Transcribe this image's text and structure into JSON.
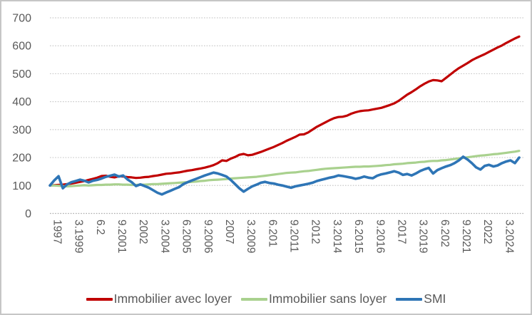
{
  "figure": {
    "background": "#ffffff",
    "border_color": "#c6c6c6"
  },
  "axis_style": {
    "label_color": "#595959",
    "grid_color": "#c9c9c9",
    "zero_line_color": "#ababab"
  },
  "chart_data": {
    "type": "line",
    "title": "",
    "xlabel": "",
    "ylabel": "",
    "ylim": [
      0,
      700
    ],
    "y_tick_labels": [
      "0",
      "100",
      "200",
      "300",
      "400",
      "500",
      "600",
      "700"
    ],
    "grid": "horizontal-dotted",
    "legend_position": "bottom",
    "x_tick_labels": [
      "1997",
      "3.1999",
      "6.2",
      "9.2001",
      "2002",
      "3.2004",
      "6.2005",
      "9.2006",
      "2007",
      "3.2009",
      "6.201",
      "9.2011",
      "2012",
      "3.2014",
      "6.2015",
      "9.2016",
      "2017",
      "3.2019",
      "6.202",
      "9.2021",
      "2022",
      "3.2024"
    ],
    "x_tick_every_n_points": 5,
    "x_unit": "quarters, 12.1997 - 3.2025",
    "series": [
      {
        "name": "Immobilier avec loyer",
        "color": "#c00000",
        "width": 3.2,
        "values": [
          100,
          101,
          102,
          103,
          105,
          107,
          110,
          113,
          116,
          120,
          124,
          128,
          134,
          135,
          131,
          129,
          133,
          132,
          130,
          129,
          127,
          128,
          130,
          131,
          134,
          136,
          139,
          142,
          143,
          145,
          147,
          150,
          153,
          155,
          158,
          161,
          164,
          168,
          173,
          180,
          190,
          188,
          196,
          202,
          210,
          213,
          208,
          210,
          215,
          220,
          226,
          232,
          238,
          245,
          252,
          260,
          267,
          274,
          282,
          283,
          290,
          300,
          310,
          318,
          326,
          334,
          341,
          345,
          346,
          350,
          357,
          362,
          366,
          368,
          369,
          372,
          375,
          378,
          383,
          388,
          394,
          403,
          414,
          425,
          434,
          444,
          455,
          464,
          472,
          477,
          476,
          473,
          485,
          497,
          509,
          520,
          529,
          538,
          548,
          556,
          563,
          570,
          578,
          586,
          594,
          601,
          610,
          618,
          626,
          633
        ]
      },
      {
        "name": "Immobilier sans loyer",
        "color": "#a9d18e",
        "width": 3.2,
        "values": [
          100,
          100,
          99,
          98,
          97,
          98,
          99,
          100,
          101,
          100,
          101,
          102,
          102,
          103,
          103,
          104,
          104,
          103,
          103,
          102,
          102,
          103,
          103,
          104,
          105,
          105,
          106,
          107,
          108,
          109,
          110,
          111,
          112,
          113,
          114,
          116,
          117,
          119,
          120,
          121,
          122,
          123,
          125,
          126,
          127,
          128,
          129,
          130,
          131,
          133,
          135,
          137,
          139,
          141,
          143,
          145,
          146,
          147,
          149,
          151,
          152,
          154,
          156,
          158,
          160,
          161,
          162,
          163,
          164,
          165,
          166,
          167,
          167,
          168,
          168,
          169,
          170,
          171,
          173,
          174,
          176,
          177,
          178,
          180,
          181,
          182,
          184,
          185,
          187,
          188,
          188,
          190,
          191,
          193,
          195,
          197,
          199,
          201,
          203,
          205,
          207,
          208,
          210,
          212,
          213,
          215,
          217,
          219,
          221,
          224
        ]
      },
      {
        "name": "SMI",
        "color": "#2e75b6",
        "width": 3.6,
        "values": [
          100,
          118,
          133,
          90,
          104,
          112,
          116,
          121,
          117,
          111,
          117,
          120,
          125,
          131,
          135,
          139,
          132,
          136,
          122,
          112,
          98,
          104,
          98,
          92,
          83,
          74,
          68,
          75,
          81,
          88,
          94,
          105,
          112,
          118,
          124,
          130,
          136,
          141,
          146,
          143,
          138,
          132,
          120,
          105,
          90,
          78,
          88,
          97,
          103,
          110,
          113,
          109,
          107,
          103,
          100,
          96,
          92,
          97,
          100,
          103,
          106,
          110,
          116,
          120,
          124,
          128,
          131,
          136,
          134,
          131,
          128,
          124,
          127,
          132,
          128,
          126,
          135,
          140,
          143,
          147,
          151,
          146,
          138,
          141,
          136,
          143,
          152,
          158,
          163,
          143,
          155,
          162,
          168,
          173,
          180,
          190,
          203,
          193,
          180,
          165,
          157,
          170,
          174,
          168,
          172,
          180,
          186,
          190,
          180,
          200
        ]
      }
    ]
  },
  "legend": {
    "items": [
      {
        "label": "Immobilier avec loyer",
        "color": "#c00000"
      },
      {
        "label": "Immobilier sans loyer",
        "color": "#a9d18e"
      },
      {
        "label": "SMI",
        "color": "#2e75b6"
      }
    ]
  }
}
